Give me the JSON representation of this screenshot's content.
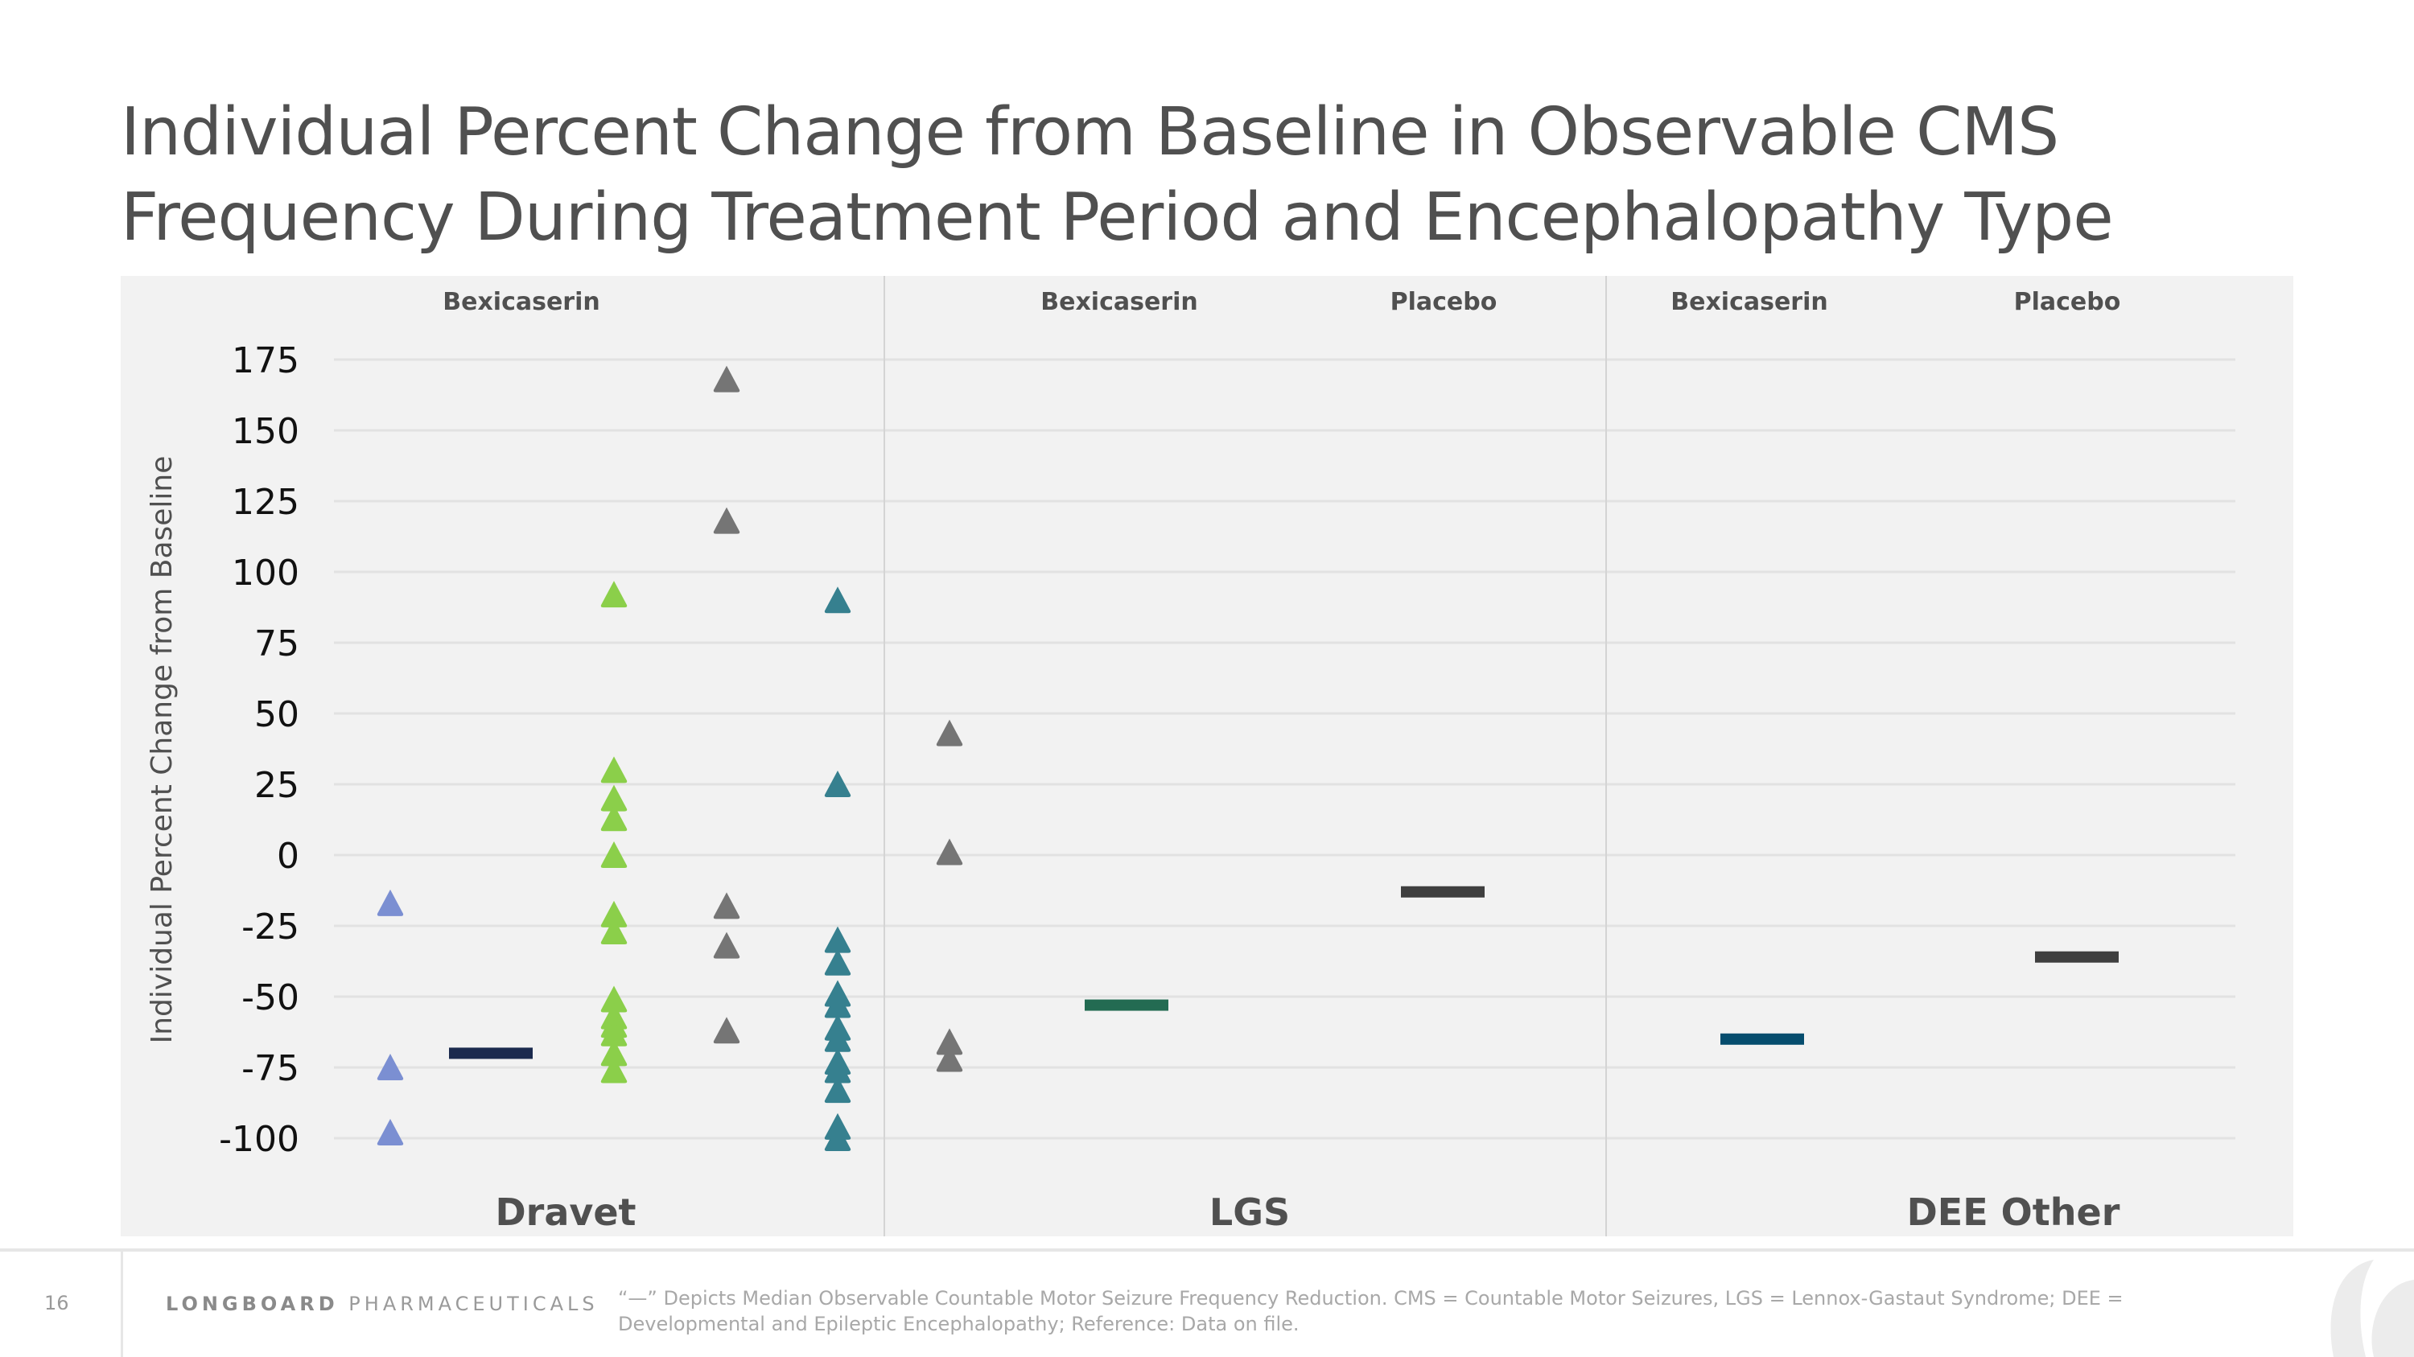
{
  "slide": {
    "title_line1": "Individual Percent Change from Baseline in Observable CMS",
    "title_line2": "Frequency During Treatment Period and Encephalopathy Type",
    "page_number": "16",
    "brand_bold": "LONGBOARD",
    "brand_light": "PHARMACEUTICALS",
    "footnote": "“—” Depicts Median Observable Countable Motor Seizure Frequency Reduction. CMS = Countable Motor Seizures, LGS = Lennox-Gastaut Syndrome; DEE = Developmental and Epileptic Encephalopathy; Reference: Data on file."
  },
  "colors": {
    "panel_bg": "#f2f2f2",
    "grid": "#e2e2e2",
    "divider": "#d4d4d4",
    "text_dark": "#505050",
    "blue": "#7b8fd2",
    "green": "#8bcf4a",
    "gray": "#757575",
    "teal": "#36808f",
    "median_navy": "#1b2a4e",
    "median_lgs_green": "#236b52",
    "median_dee_blue": "#064d6e",
    "median_placebo": "#3f3f3f"
  },
  "chart_data": {
    "type": "scatter",
    "title": "Individual Percent Change from Baseline in Observable CMS Frequency During Treatment Period and Encephalopathy Type",
    "ylabel": "Individual Percent Change from Baseline",
    "xlabel": "",
    "ylim": [
      -100,
      175
    ],
    "yticks": [
      175,
      150,
      125,
      100,
      75,
      50,
      25,
      0,
      -25,
      -50,
      -75,
      -100
    ],
    "grid": true,
    "marker": "triangle",
    "panels": [
      {
        "name": "Dravet",
        "groups": [
          {
            "label": "Bexicaserin",
            "subgroups": [
              {
                "color_key": "blue",
                "values": [
                  -17,
                  -75,
                  -98
                ]
              },
              {
                "color_key": "median_navy",
                "median": -70
              },
              {
                "color_key": "green",
                "values": [
                  92,
                  30,
                  20,
                  13,
                  0,
                  -21,
                  -27,
                  -51,
                  -57,
                  -60,
                  -63,
                  -70,
                  -76
                ]
              },
              {
                "color_key": "gray",
                "values": [
                  168,
                  118,
                  -18,
                  -32,
                  -62
                ]
              },
              {
                "color_key": "teal",
                "values": [
                  90,
                  25,
                  -30,
                  -38,
                  -49,
                  -53,
                  -61,
                  -65,
                  -73,
                  -76,
                  -83,
                  -96,
                  -100
                ]
              }
            ]
          }
        ]
      },
      {
        "name": "LGS",
        "groups": [
          {
            "label": "Bexicaserin",
            "subgroups": [
              {
                "color_key": "gray",
                "values": [
                  43,
                  1,
                  -66,
                  -72
                ]
              },
              {
                "color_key": "median_lgs_green",
                "median": -53
              }
            ]
          },
          {
            "label": "Placebo",
            "subgroups": [
              {
                "color_key": "median_placebo",
                "median": -13
              }
            ]
          }
        ]
      },
      {
        "name": "DEE Other",
        "groups": [
          {
            "label": "Bexicaserin",
            "subgroups": [
              {
                "color_key": "median_dee_blue",
                "median": -65
              }
            ]
          },
          {
            "label": "Placebo",
            "subgroups": [
              {
                "color_key": "median_placebo",
                "median": -36
              }
            ]
          }
        ]
      }
    ]
  }
}
